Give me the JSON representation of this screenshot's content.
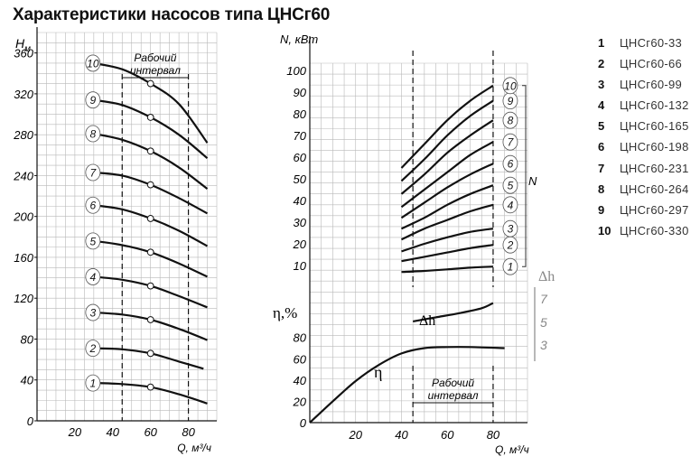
{
  "title": "Характеристики насосов типа ЦНСг60",
  "legend": [
    {
      "num": "1",
      "label": "ЦНСг60-33"
    },
    {
      "num": "2",
      "label": "ЦНСг60-66"
    },
    {
      "num": "3",
      "label": "ЦНСг60-99"
    },
    {
      "num": "4",
      "label": "ЦНСг60-132"
    },
    {
      "num": "5",
      "label": "ЦНСг60-165"
    },
    {
      "num": "6",
      "label": "ЦНСг60-198"
    },
    {
      "num": "7",
      "label": "ЦНСг60-231"
    },
    {
      "num": "8",
      "label": "ЦНСг60-264"
    },
    {
      "num": "9",
      "label": "ЦНСг60-297"
    },
    {
      "num": "10",
      "label": "ЦНСг60-330"
    }
  ],
  "chart_data": [
    {
      "type": "line",
      "id": "head",
      "ylabel": "Н",
      "ylabel_sub": "м",
      "xlabel": "Q, м³/ч",
      "xlim": [
        0,
        95
      ],
      "ylim": [
        0,
        380
      ],
      "x_ticks": [
        20,
        40,
        60,
        80
      ],
      "y_ticks": [
        0,
        40,
        80,
        120,
        160,
        200,
        240,
        280,
        320,
        360
      ],
      "grid": true,
      "work_interval": {
        "label": [
          "Рабочий",
          "интервал"
        ],
        "from": 45,
        "to": 80
      },
      "series": [
        {
          "name": "1",
          "points": [
            [
              30,
              37
            ],
            [
              45,
              36
            ],
            [
              60,
              33
            ],
            [
              75,
              26
            ],
            [
              90,
              17
            ]
          ],
          "marker_x": 60
        },
        {
          "name": "2",
          "points": [
            [
              30,
              71
            ],
            [
              45,
              70
            ],
            [
              60,
              66
            ],
            [
              75,
              58
            ],
            [
              88,
              51
            ]
          ],
          "marker_x": 60
        },
        {
          "name": "3",
          "points": [
            [
              30,
              106
            ],
            [
              45,
              104
            ],
            [
              60,
              99
            ],
            [
              75,
              90
            ],
            [
              90,
              79
            ]
          ],
          "marker_x": 60
        },
        {
          "name": "4",
          "points": [
            [
              30,
              141
            ],
            [
              45,
              138
            ],
            [
              60,
              132
            ],
            [
              75,
              122
            ],
            [
              90,
              111
            ]
          ],
          "marker_x": 60
        },
        {
          "name": "5",
          "points": [
            [
              30,
              176
            ],
            [
              45,
              172
            ],
            [
              60,
              165
            ],
            [
              75,
              154
            ],
            [
              90,
              141
            ]
          ],
          "marker_x": 60
        },
        {
          "name": "6",
          "points": [
            [
              30,
              211
            ],
            [
              45,
              207
            ],
            [
              60,
              198
            ],
            [
              75,
              186
            ],
            [
              90,
              171
            ]
          ],
          "marker_x": 60
        },
        {
          "name": "7",
          "points": [
            [
              30,
              243
            ],
            [
              45,
              240
            ],
            [
              60,
              231
            ],
            [
              75,
              218
            ],
            [
              90,
              203
            ]
          ],
          "marker_x": 60
        },
        {
          "name": "8",
          "points": [
            [
              30,
              281
            ],
            [
              45,
              275
            ],
            [
              60,
              264
            ],
            [
              75,
              248
            ],
            [
              90,
              227
            ]
          ],
          "marker_x": 60
        },
        {
          "name": "9",
          "points": [
            [
              30,
              314
            ],
            [
              45,
              309
            ],
            [
              60,
              297
            ],
            [
              75,
              280
            ],
            [
              90,
              257
            ]
          ],
          "marker_x": 60
        },
        {
          "name": "10",
          "points": [
            [
              30,
              350
            ],
            [
              45,
              344
            ],
            [
              60,
              330
            ],
            [
              75,
              310
            ],
            [
              90,
              272
            ]
          ],
          "marker_x": 60
        }
      ]
    },
    {
      "type": "line",
      "id": "power_efficiency",
      "ylabel_power": "N, кВт",
      "ylabel_eff": "η,%",
      "xlabel": "Q, м³/ч",
      "xlim": [
        0,
        95
      ],
      "power_ylim": [
        0,
        105
      ],
      "power_y_ticks": [
        10,
        20,
        30,
        40,
        50,
        60,
        70,
        80,
        90,
        100
      ],
      "eff_ylim": [
        0,
        95
      ],
      "eff_y_ticks": [
        0,
        20,
        40,
        60,
        80
      ],
      "x_ticks": [
        20,
        40,
        60,
        80
      ],
      "grid": true,
      "work_interval_top": {
        "from": 45,
        "to": 80
      },
      "work_interval_bottom": {
        "label": [
          "Рабочий",
          "интервал"
        ],
        "from": 45,
        "to": 80
      },
      "power_series": [
        {
          "name": "1",
          "points": [
            [
              40,
              7
            ],
            [
              50,
              7.5
            ],
            [
              60,
              8.2
            ],
            [
              70,
              9
            ],
            [
              80,
              9.5
            ]
          ]
        },
        {
          "name": "2",
          "points": [
            [
              40,
              12
            ],
            [
              50,
              14
            ],
            [
              60,
              16
            ],
            [
              70,
              18
            ],
            [
              80,
              19.5
            ]
          ]
        },
        {
          "name": "3",
          "points": [
            [
              40,
              16.5
            ],
            [
              50,
              20
            ],
            [
              60,
              23
            ],
            [
              70,
              25.5
            ],
            [
              80,
              27
            ]
          ]
        },
        {
          "name": "4",
          "points": [
            [
              40,
              22
            ],
            [
              50,
              27
            ],
            [
              60,
              31
            ],
            [
              70,
              35
            ],
            [
              80,
              38
            ]
          ]
        },
        {
          "name": "5",
          "points": [
            [
              40,
              27
            ],
            [
              50,
              32
            ],
            [
              60,
              38
            ],
            [
              70,
              43
            ],
            [
              80,
              47
            ]
          ]
        },
        {
          "name": "6",
          "points": [
            [
              40,
              32
            ],
            [
              50,
              39
            ],
            [
              60,
              46
            ],
            [
              70,
              52
            ],
            [
              80,
              57
            ]
          ]
        },
        {
          "name": "7",
          "points": [
            [
              40,
              37
            ],
            [
              50,
              45
            ],
            [
              60,
              53
            ],
            [
              70,
              61
            ],
            [
              80,
              67
            ]
          ]
        },
        {
          "name": "8",
          "points": [
            [
              40,
              43
            ],
            [
              50,
              52
            ],
            [
              60,
              62
            ],
            [
              70,
              70
            ],
            [
              80,
              77
            ]
          ]
        },
        {
          "name": "9",
          "points": [
            [
              40,
              49
            ],
            [
              50,
              59
            ],
            [
              60,
              70
            ],
            [
              70,
              79
            ],
            [
              80,
              86
            ]
          ]
        },
        {
          "name": "10",
          "points": [
            [
              40,
              55
            ],
            [
              50,
              66
            ],
            [
              60,
              77
            ],
            [
              70,
              86
            ],
            [
              80,
              93
            ]
          ]
        }
      ],
      "power_bracket_label": "N",
      "efficiency_curve": {
        "name": "η",
        "points": [
          [
            0,
            0
          ],
          [
            10,
            20
          ],
          [
            20,
            39
          ],
          [
            30,
            54
          ],
          [
            40,
            65
          ],
          [
            50,
            70
          ],
          [
            60,
            71
          ],
          [
            70,
            71
          ],
          [
            85,
            70
          ]
        ]
      },
      "npsh_curve": {
        "name": "Δh",
        "points": [
          [
            45,
            5.2
          ],
          [
            55,
            5.6
          ],
          [
            65,
            6.0
          ],
          [
            75,
            6.5
          ],
          [
            80,
            7.0
          ]
        ]
      },
      "npsh_axis": {
        "label": "Δh",
        "ticks": [
          "7",
          "5",
          "3"
        ]
      }
    }
  ]
}
